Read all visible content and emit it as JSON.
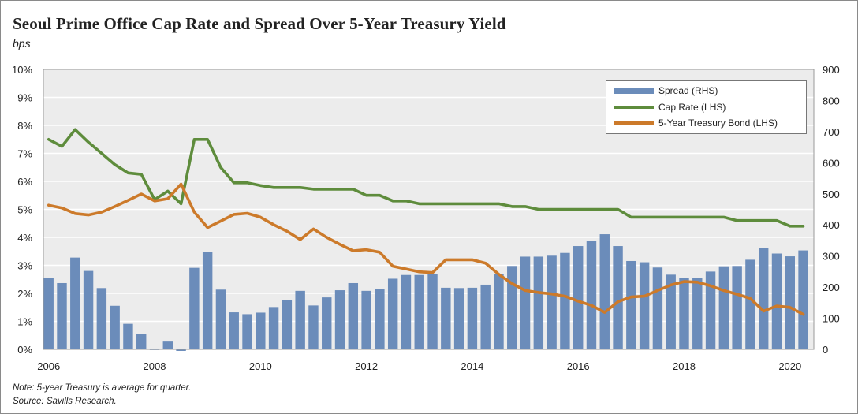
{
  "title": "Seoul Prime Office Cap Rate and Spread Over 5-Year Treasury Yield",
  "subtitle": "bps",
  "notes": [
    "Note: 5-year Treasury is average for quarter.",
    "Source: Savills Research."
  ],
  "colors": {
    "spread": "#6b8cba",
    "cap_rate": "#5e8c3c",
    "treasury": "#cc7a2a",
    "plot_bg": "#ececec",
    "grid": "#ffffff"
  },
  "chart_data": {
    "type": "bar",
    "grid": true,
    "legend_position": "top-right",
    "x_tick_labels": [
      "2006",
      "2008",
      "2010",
      "2012",
      "2014",
      "2016",
      "2018",
      "2020"
    ],
    "x_ticks": [
      2006,
      2008,
      2010,
      2012,
      2014,
      2016,
      2018,
      2020
    ],
    "y_left": {
      "label": "",
      "lim": [
        0,
        10
      ],
      "ticks": [
        "0%",
        "1%",
        "2%",
        "3%",
        "4%",
        "5%",
        "6%",
        "7%",
        "8%",
        "9%",
        "10%"
      ]
    },
    "y_right": {
      "label": "",
      "lim": [
        0,
        900
      ],
      "ticks": [
        "0",
        "100",
        "200",
        "300",
        "400",
        "500",
        "600",
        "700",
        "800",
        "900"
      ]
    },
    "x": [
      2006.0,
      2006.25,
      2006.5,
      2006.75,
      2007.0,
      2007.25,
      2007.5,
      2007.75,
      2008.0,
      2008.25,
      2008.5,
      2008.75,
      2009.0,
      2009.25,
      2009.5,
      2009.75,
      2010.0,
      2010.25,
      2010.5,
      2010.75,
      2011.0,
      2011.25,
      2011.5,
      2011.75,
      2012.0,
      2012.25,
      2012.5,
      2012.75,
      2013.0,
      2013.25,
      2013.5,
      2013.75,
      2014.0,
      2014.25,
      2014.5,
      2014.75,
      2015.0,
      2015.25,
      2015.5,
      2015.75,
      2016.0,
      2016.25,
      2016.5,
      2016.75,
      2017.0,
      2017.25,
      2017.5,
      2017.75,
      2018.0,
      2018.25,
      2018.5,
      2018.75,
      2019.0,
      2019.25,
      2019.5,
      2019.75,
      2020.0,
      2020.25
    ],
    "series": [
      {
        "name": "Spread (RHS)",
        "type": "bar",
        "axis": "right",
        "values": [
          230,
          213,
          295,
          252,
          197,
          140,
          82,
          50,
          0,
          25,
          -5,
          262,
          314,
          192,
          119,
          113,
          118,
          136,
          159,
          188,
          141,
          167,
          190,
          213,
          188,
          195,
          227,
          239,
          239,
          241,
          198,
          197,
          198,
          208,
          242,
          268,
          298,
          298,
          301,
          310,
          332,
          348,
          370,
          332,
          284,
          280,
          263,
          240,
          230,
          230,
          250,
          267,
          268,
          288,
          326,
          308,
          299,
          318
        ]
      },
      {
        "name": "Cap Rate (LHS)",
        "type": "line",
        "axis": "left",
        "values": [
          7.5,
          7.25,
          7.85,
          7.4,
          7.0,
          6.6,
          6.3,
          6.25,
          5.35,
          5.65,
          5.2,
          7.5,
          7.5,
          6.5,
          5.95,
          5.95,
          5.85,
          5.78,
          5.78,
          5.78,
          5.72,
          5.72,
          5.72,
          5.72,
          5.5,
          5.5,
          5.3,
          5.3,
          5.2,
          5.2,
          5.2,
          5.2,
          5.2,
          5.2,
          5.2,
          5.1,
          5.1,
          5.0,
          5.0,
          5.0,
          5.0,
          5.0,
          5.0,
          5.0,
          4.72,
          4.72,
          4.72,
          4.72,
          4.72,
          4.72,
          4.72,
          4.72,
          4.6,
          4.6,
          4.6,
          4.6,
          4.4,
          4.4
        ]
      },
      {
        "name": "5-Year Treasury Bond (LHS)",
        "type": "line",
        "axis": "left",
        "values": [
          5.15,
          5.05,
          4.85,
          4.8,
          4.9,
          5.1,
          5.32,
          5.55,
          5.3,
          5.38,
          5.9,
          4.9,
          4.35,
          4.58,
          4.82,
          4.86,
          4.72,
          4.45,
          4.22,
          3.92,
          4.3,
          4.0,
          3.75,
          3.52,
          3.56,
          3.47,
          2.97,
          2.87,
          2.77,
          2.74,
          3.2,
          3.2,
          3.2,
          3.08,
          2.68,
          2.35,
          2.1,
          2.03,
          1.98,
          1.9,
          1.72,
          1.57,
          1.32,
          1.7,
          1.87,
          1.9,
          2.1,
          2.3,
          2.42,
          2.4,
          2.27,
          2.1,
          1.97,
          1.82,
          1.37,
          1.55,
          1.5,
          1.25
        ]
      }
    ]
  }
}
